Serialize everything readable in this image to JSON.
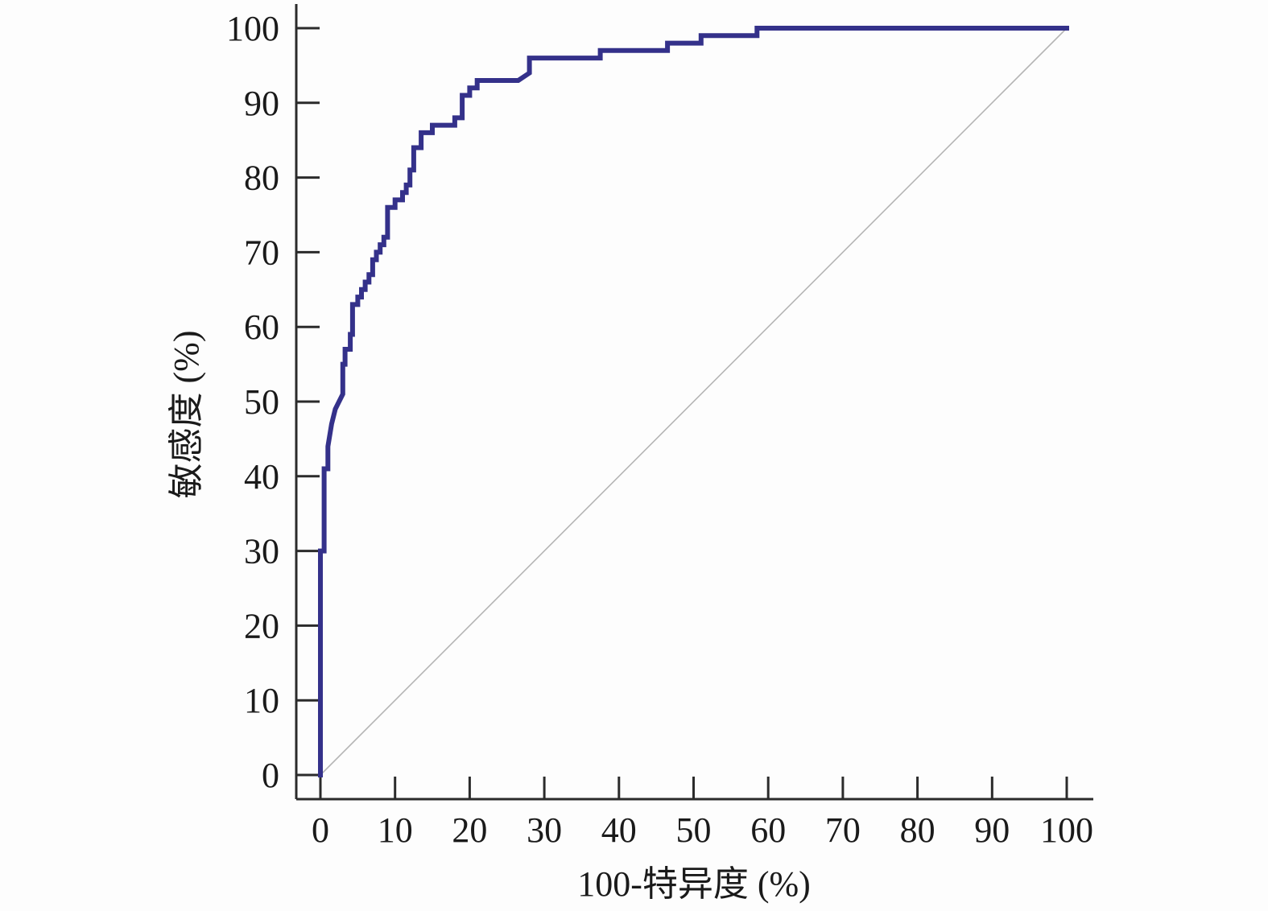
{
  "chart_data": {
    "type": "line",
    "title": "",
    "xlabel": "100-特异度 (%)",
    "ylabel": "敏感度 (%)",
    "xlim": [
      0,
      100
    ],
    "ylim": [
      0,
      100
    ],
    "x_ticks": [
      "0",
      "10",
      "20",
      "30",
      "40",
      "50",
      "60",
      "70",
      "80",
      "90",
      "100"
    ],
    "y_ticks": [
      "0",
      "10",
      "20",
      "30",
      "40",
      "50",
      "60",
      "70",
      "80",
      "90",
      "100"
    ],
    "grid": false,
    "legend": "none",
    "colors": {
      "roc": "#34318a",
      "reference": "#b5b5b5",
      "axis": "#2b2b2b"
    },
    "series": [
      {
        "x": [
          0,
          0,
          0.5,
          0.5,
          1,
          1,
          1.5,
          2,
          2,
          3,
          3,
          3.3,
          3.3,
          4,
          4,
          4.3,
          4.3,
          5,
          5,
          5.5,
          5.5,
          6,
          6,
          6.5,
          6.5,
          7,
          7,
          7.5,
          7.5,
          8,
          8,
          8.5,
          8.5,
          9,
          9,
          9.5,
          10,
          10,
          11,
          11,
          11.5,
          11.5,
          12,
          12,
          12.5,
          12.5,
          13.5,
          13.5,
          15,
          15,
          16.5,
          16.5,
          18,
          18,
          19,
          19,
          20,
          20,
          21,
          21,
          26.5,
          28,
          28,
          37.5,
          37.5,
          46.5,
          46.5,
          51,
          51,
          58.5,
          58.5,
          100
        ],
        "y": [
          0,
          30,
          30,
          41,
          41,
          44,
          47,
          49,
          49,
          51,
          55,
          55,
          57,
          57,
          59,
          59,
          63,
          63,
          64,
          64,
          65,
          65,
          66,
          66,
          67,
          67,
          69,
          69,
          70,
          70,
          71,
          71,
          72,
          72,
          76,
          76,
          76,
          77,
          77,
          78,
          78,
          79,
          79,
          81,
          81,
          84,
          84,
          86,
          86,
          87,
          87,
          87,
          87,
          88,
          88,
          91,
          91,
          92,
          92,
          93,
          93,
          94,
          96,
          96,
          97,
          97,
          98,
          98,
          99,
          99,
          100,
          100
        ]
      },
      {
        "x": [
          0,
          100
        ],
        "y": [
          0,
          100
        ]
      }
    ]
  }
}
